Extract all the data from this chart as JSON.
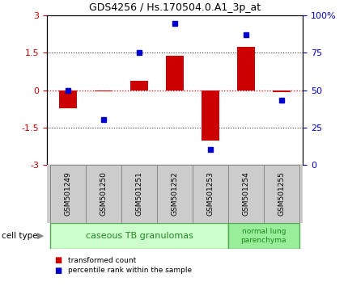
{
  "title": "GDS4256 / Hs.170504.0.A1_3p_at",
  "samples": [
    "GSM501249",
    "GSM501250",
    "GSM501251",
    "GSM501252",
    "GSM501253",
    "GSM501254",
    "GSM501255"
  ],
  "red_values": [
    -0.72,
    -0.05,
    0.38,
    1.38,
    -2.05,
    1.75,
    -0.08
  ],
  "blue_values": [
    50,
    30,
    75,
    95,
    10,
    87,
    43
  ],
  "ylim_left": [
    -3,
    3
  ],
  "ylim_right": [
    0,
    100
  ],
  "yticks_left": [
    -3,
    -1.5,
    0,
    1.5,
    3
  ],
  "yticks_right": [
    0,
    25,
    50,
    75,
    100
  ],
  "ytick_labels_left": [
    "-3",
    "-1.5",
    "0",
    "1.5",
    "3"
  ],
  "ytick_labels_right": [
    "0",
    "25",
    "50",
    "75",
    "100%"
  ],
  "red_color": "#cc0000",
  "blue_color": "#0000cc",
  "hline_color": "#cc0000",
  "dotted_color": "#333333",
  "bar_width": 0.5,
  "group1_label": "caseous TB granulomas",
  "group2_label": "normal lung\nparenchyma",
  "group1_indices": [
    0,
    1,
    2,
    3,
    4
  ],
  "group2_indices": [
    5,
    6
  ],
  "group1_color": "#ccffcc",
  "group2_color": "#99ee99",
  "group_edge_color": "#55aa55",
  "cell_type_label": "cell type",
  "legend_red_label": "transformed count",
  "legend_blue_label": "percentile rank within the sample",
  "bg_color": "#ffffff",
  "plot_bg_color": "#ffffff",
  "tick_area_color": "#cccccc",
  "tick_area_edge": "#888888"
}
